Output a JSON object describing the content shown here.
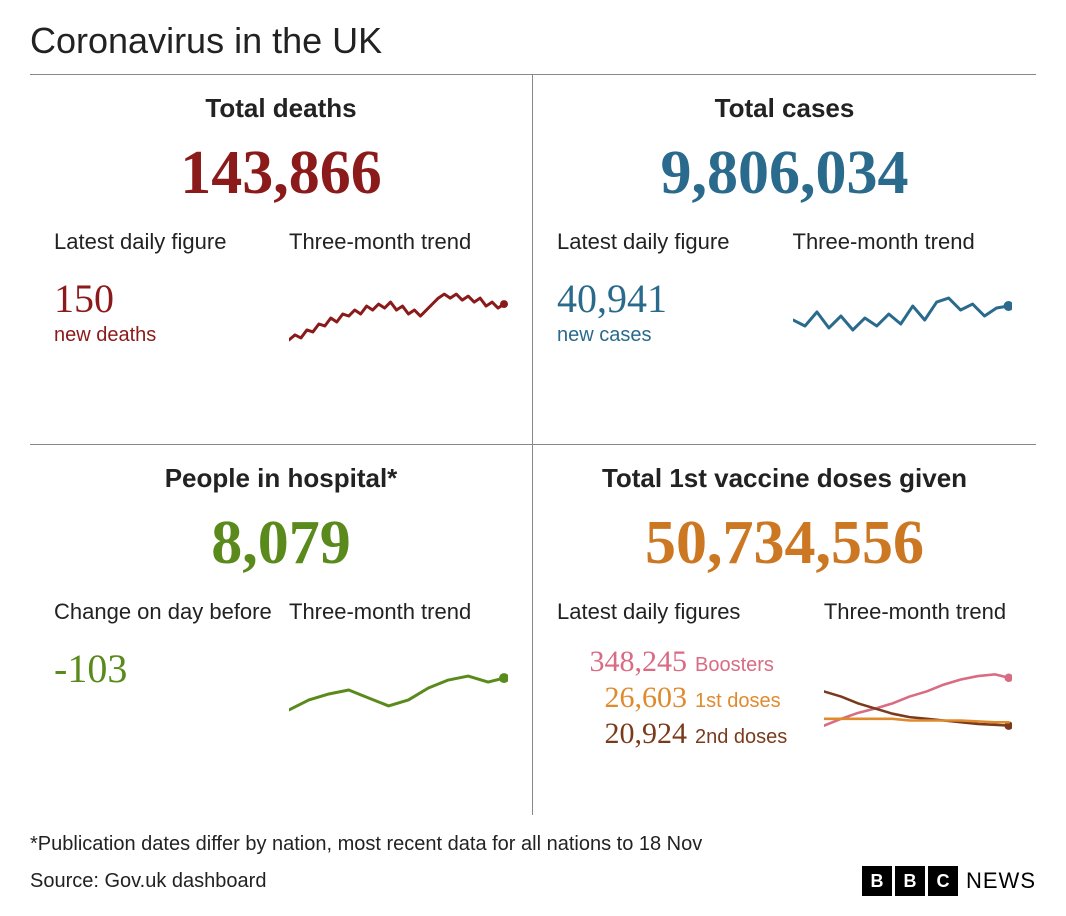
{
  "title": "Coronavirus in the UK",
  "panels": {
    "deaths": {
      "title": "Total deaths",
      "total": "143,866",
      "color": "#8b1a1a",
      "daily_label": "Latest daily figure",
      "daily_value": "150",
      "daily_caption": "new deaths",
      "trend_label": "Three-month trend",
      "trend_points": [
        [
          0,
          60
        ],
        [
          6,
          55
        ],
        [
          12,
          58
        ],
        [
          18,
          50
        ],
        [
          24,
          52
        ],
        [
          30,
          44
        ],
        [
          36,
          46
        ],
        [
          42,
          38
        ],
        [
          48,
          42
        ],
        [
          54,
          34
        ],
        [
          60,
          36
        ],
        [
          66,
          30
        ],
        [
          72,
          34
        ],
        [
          78,
          26
        ],
        [
          84,
          30
        ],
        [
          90,
          24
        ],
        [
          96,
          28
        ],
        [
          102,
          22
        ],
        [
          108,
          30
        ],
        [
          114,
          26
        ],
        [
          120,
          34
        ],
        [
          126,
          30
        ],
        [
          132,
          36
        ],
        [
          138,
          30
        ],
        [
          144,
          24
        ],
        [
          150,
          18
        ],
        [
          156,
          14
        ],
        [
          162,
          18
        ],
        [
          168,
          14
        ],
        [
          174,
          20
        ],
        [
          180,
          16
        ],
        [
          186,
          22
        ],
        [
          192,
          18
        ],
        [
          198,
          26
        ],
        [
          204,
          22
        ],
        [
          210,
          28
        ],
        [
          216,
          24
        ]
      ],
      "marker_r": 4,
      "stroke_width": 3
    },
    "cases": {
      "title": "Total cases",
      "total": "9,806,034",
      "color": "#2a6a8c",
      "daily_label": "Latest daily figure",
      "daily_value": "40,941",
      "daily_caption": "new cases",
      "trend_label": "Three-month trend",
      "trend_points": [
        [
          0,
          40
        ],
        [
          12,
          46
        ],
        [
          24,
          32
        ],
        [
          36,
          48
        ],
        [
          48,
          36
        ],
        [
          60,
          50
        ],
        [
          72,
          38
        ],
        [
          84,
          46
        ],
        [
          96,
          34
        ],
        [
          108,
          44
        ],
        [
          120,
          26
        ],
        [
          132,
          40
        ],
        [
          144,
          22
        ],
        [
          156,
          18
        ],
        [
          168,
          30
        ],
        [
          180,
          24
        ],
        [
          192,
          36
        ],
        [
          204,
          28
        ],
        [
          216,
          26
        ]
      ],
      "marker_r": 5,
      "stroke_width": 3
    },
    "hospital": {
      "title": "People in hospital*",
      "total": "8,079",
      "color": "#5a8a1c",
      "daily_label": "Change on day before",
      "daily_value": "-103",
      "daily_caption": "",
      "trend_label": "Three-month trend",
      "trend_points": [
        [
          0,
          60
        ],
        [
          20,
          50
        ],
        [
          40,
          44
        ],
        [
          60,
          40
        ],
        [
          80,
          48
        ],
        [
          100,
          56
        ],
        [
          120,
          50
        ],
        [
          140,
          38
        ],
        [
          160,
          30
        ],
        [
          180,
          26
        ],
        [
          200,
          32
        ],
        [
          216,
          28
        ]
      ],
      "marker_r": 5,
      "stroke_width": 3
    },
    "vaccines": {
      "title": "Total 1st vaccine doses given",
      "total": "50,734,556",
      "color": "#cc7722",
      "daily_label": "Latest daily figures",
      "trend_label": "Three-month trend",
      "figures": [
        {
          "value": "348,245",
          "label": "Boosters",
          "color": "#d96b82"
        },
        {
          "value": "26,603",
          "label": "1st doses",
          "color": "#e08a2e"
        },
        {
          "value": "20,924",
          "label": "2nd doses",
          "color": "#7a3b1c"
        }
      ],
      "trend_series": [
        {
          "color": "#d96b82",
          "points": [
            [
              0,
              70
            ],
            [
              20,
              62
            ],
            [
              40,
              55
            ],
            [
              60,
              50
            ],
            [
              80,
              44
            ],
            [
              100,
              36
            ],
            [
              120,
              30
            ],
            [
              140,
              22
            ],
            [
              160,
              16
            ],
            [
              180,
              12
            ],
            [
              200,
              10
            ],
            [
              216,
              14
            ]
          ],
          "stroke_width": 3,
          "marker_r": 5
        },
        {
          "color": "#7a3b1c",
          "points": [
            [
              0,
              30
            ],
            [
              20,
              36
            ],
            [
              40,
              44
            ],
            [
              60,
              50
            ],
            [
              80,
              56
            ],
            [
              100,
              60
            ],
            [
              120,
              62
            ],
            [
              140,
              64
            ],
            [
              160,
              66
            ],
            [
              180,
              68
            ],
            [
              200,
              69
            ],
            [
              216,
              70
            ]
          ],
          "stroke_width": 3,
          "marker_r": 5
        },
        {
          "color": "#e08a2e",
          "points": [
            [
              0,
              62
            ],
            [
              20,
              62
            ],
            [
              40,
              62
            ],
            [
              60,
              62
            ],
            [
              80,
              62
            ],
            [
              100,
              64
            ],
            [
              120,
              64
            ],
            [
              140,
              64
            ],
            [
              160,
              64
            ],
            [
              180,
              65
            ],
            [
              200,
              66
            ],
            [
              216,
              66
            ]
          ],
          "stroke_width": 3,
          "marker_r": 0
        }
      ]
    }
  },
  "footnote": "*Publication dates differ by nation, most recent data for all nations to 18 Nov",
  "source": "Source: Gov.uk dashboard",
  "logo_news": "NEWS",
  "svg_viewbox": "0 0 220 80"
}
